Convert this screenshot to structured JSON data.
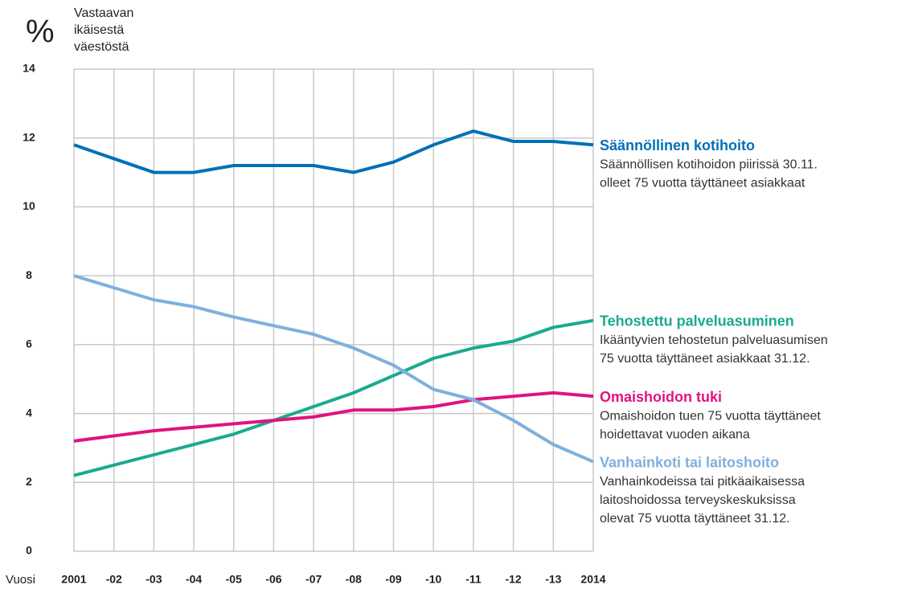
{
  "chart_data": {
    "type": "line",
    "y_unit": "%",
    "y_label": [
      "Vastaavan",
      "ikäisestä",
      "väestöstä"
    ],
    "x_label": "Vuosi",
    "categories": [
      "2001",
      "-02",
      "-03",
      "-04",
      "-05",
      "-06",
      "-07",
      "-08",
      "-09",
      "-10",
      "-11",
      "-12",
      "-13",
      "2014"
    ],
    "ylim": [
      0,
      14
    ],
    "yticks": [
      0,
      2,
      4,
      6,
      8,
      10,
      12,
      14
    ],
    "grid": true,
    "series": [
      {
        "name": "Säännöllinen kotihoito",
        "color": "#0070b8",
        "description": [
          "Säännöllisen kotihoidon piirissä 30.11.",
          "olleet 75 vuotta täyttäneet asiakkaat"
        ],
        "values": [
          11.8,
          11.4,
          11.0,
          11.0,
          11.2,
          11.2,
          11.2,
          11.0,
          11.3,
          11.8,
          12.2,
          11.9,
          11.9,
          11.8
        ]
      },
      {
        "name": "Tehostettu palveluasuminen",
        "color": "#1aaa90",
        "description": [
          "Ikääntyvien tehostetun palveluasumisen",
          "75 vuotta täyttäneet asiakkaat 31.12."
        ],
        "values": [
          2.2,
          2.5,
          2.8,
          3.1,
          3.4,
          3.8,
          4.2,
          4.6,
          5.1,
          5.6,
          5.9,
          6.1,
          6.5,
          6.7
        ]
      },
      {
        "name": "Omaishoidon tuki",
        "color": "#e0137f",
        "description": [
          "Omaishoidon tuen 75 vuotta täyttäneet",
          "hoidettavat vuoden aikana"
        ],
        "values": [
          3.2,
          3.35,
          3.5,
          3.6,
          3.7,
          3.8,
          3.9,
          4.1,
          4.1,
          4.2,
          4.4,
          4.5,
          4.6,
          4.5
        ]
      },
      {
        "name": "Vanhainkoti tai laitoshoito",
        "color": "#7fb0dd",
        "description": [
          "Vanhainkodeissa tai pitkäaikaisessa",
          "laitoshoidossa terveyskeskuksissa",
          "olevat 75 vuotta täyttäneet 31.12."
        ],
        "values": [
          8.0,
          7.65,
          7.3,
          7.1,
          6.8,
          6.55,
          6.3,
          5.9,
          5.4,
          4.7,
          4.4,
          3.8,
          3.1,
          2.6
        ]
      }
    ]
  }
}
